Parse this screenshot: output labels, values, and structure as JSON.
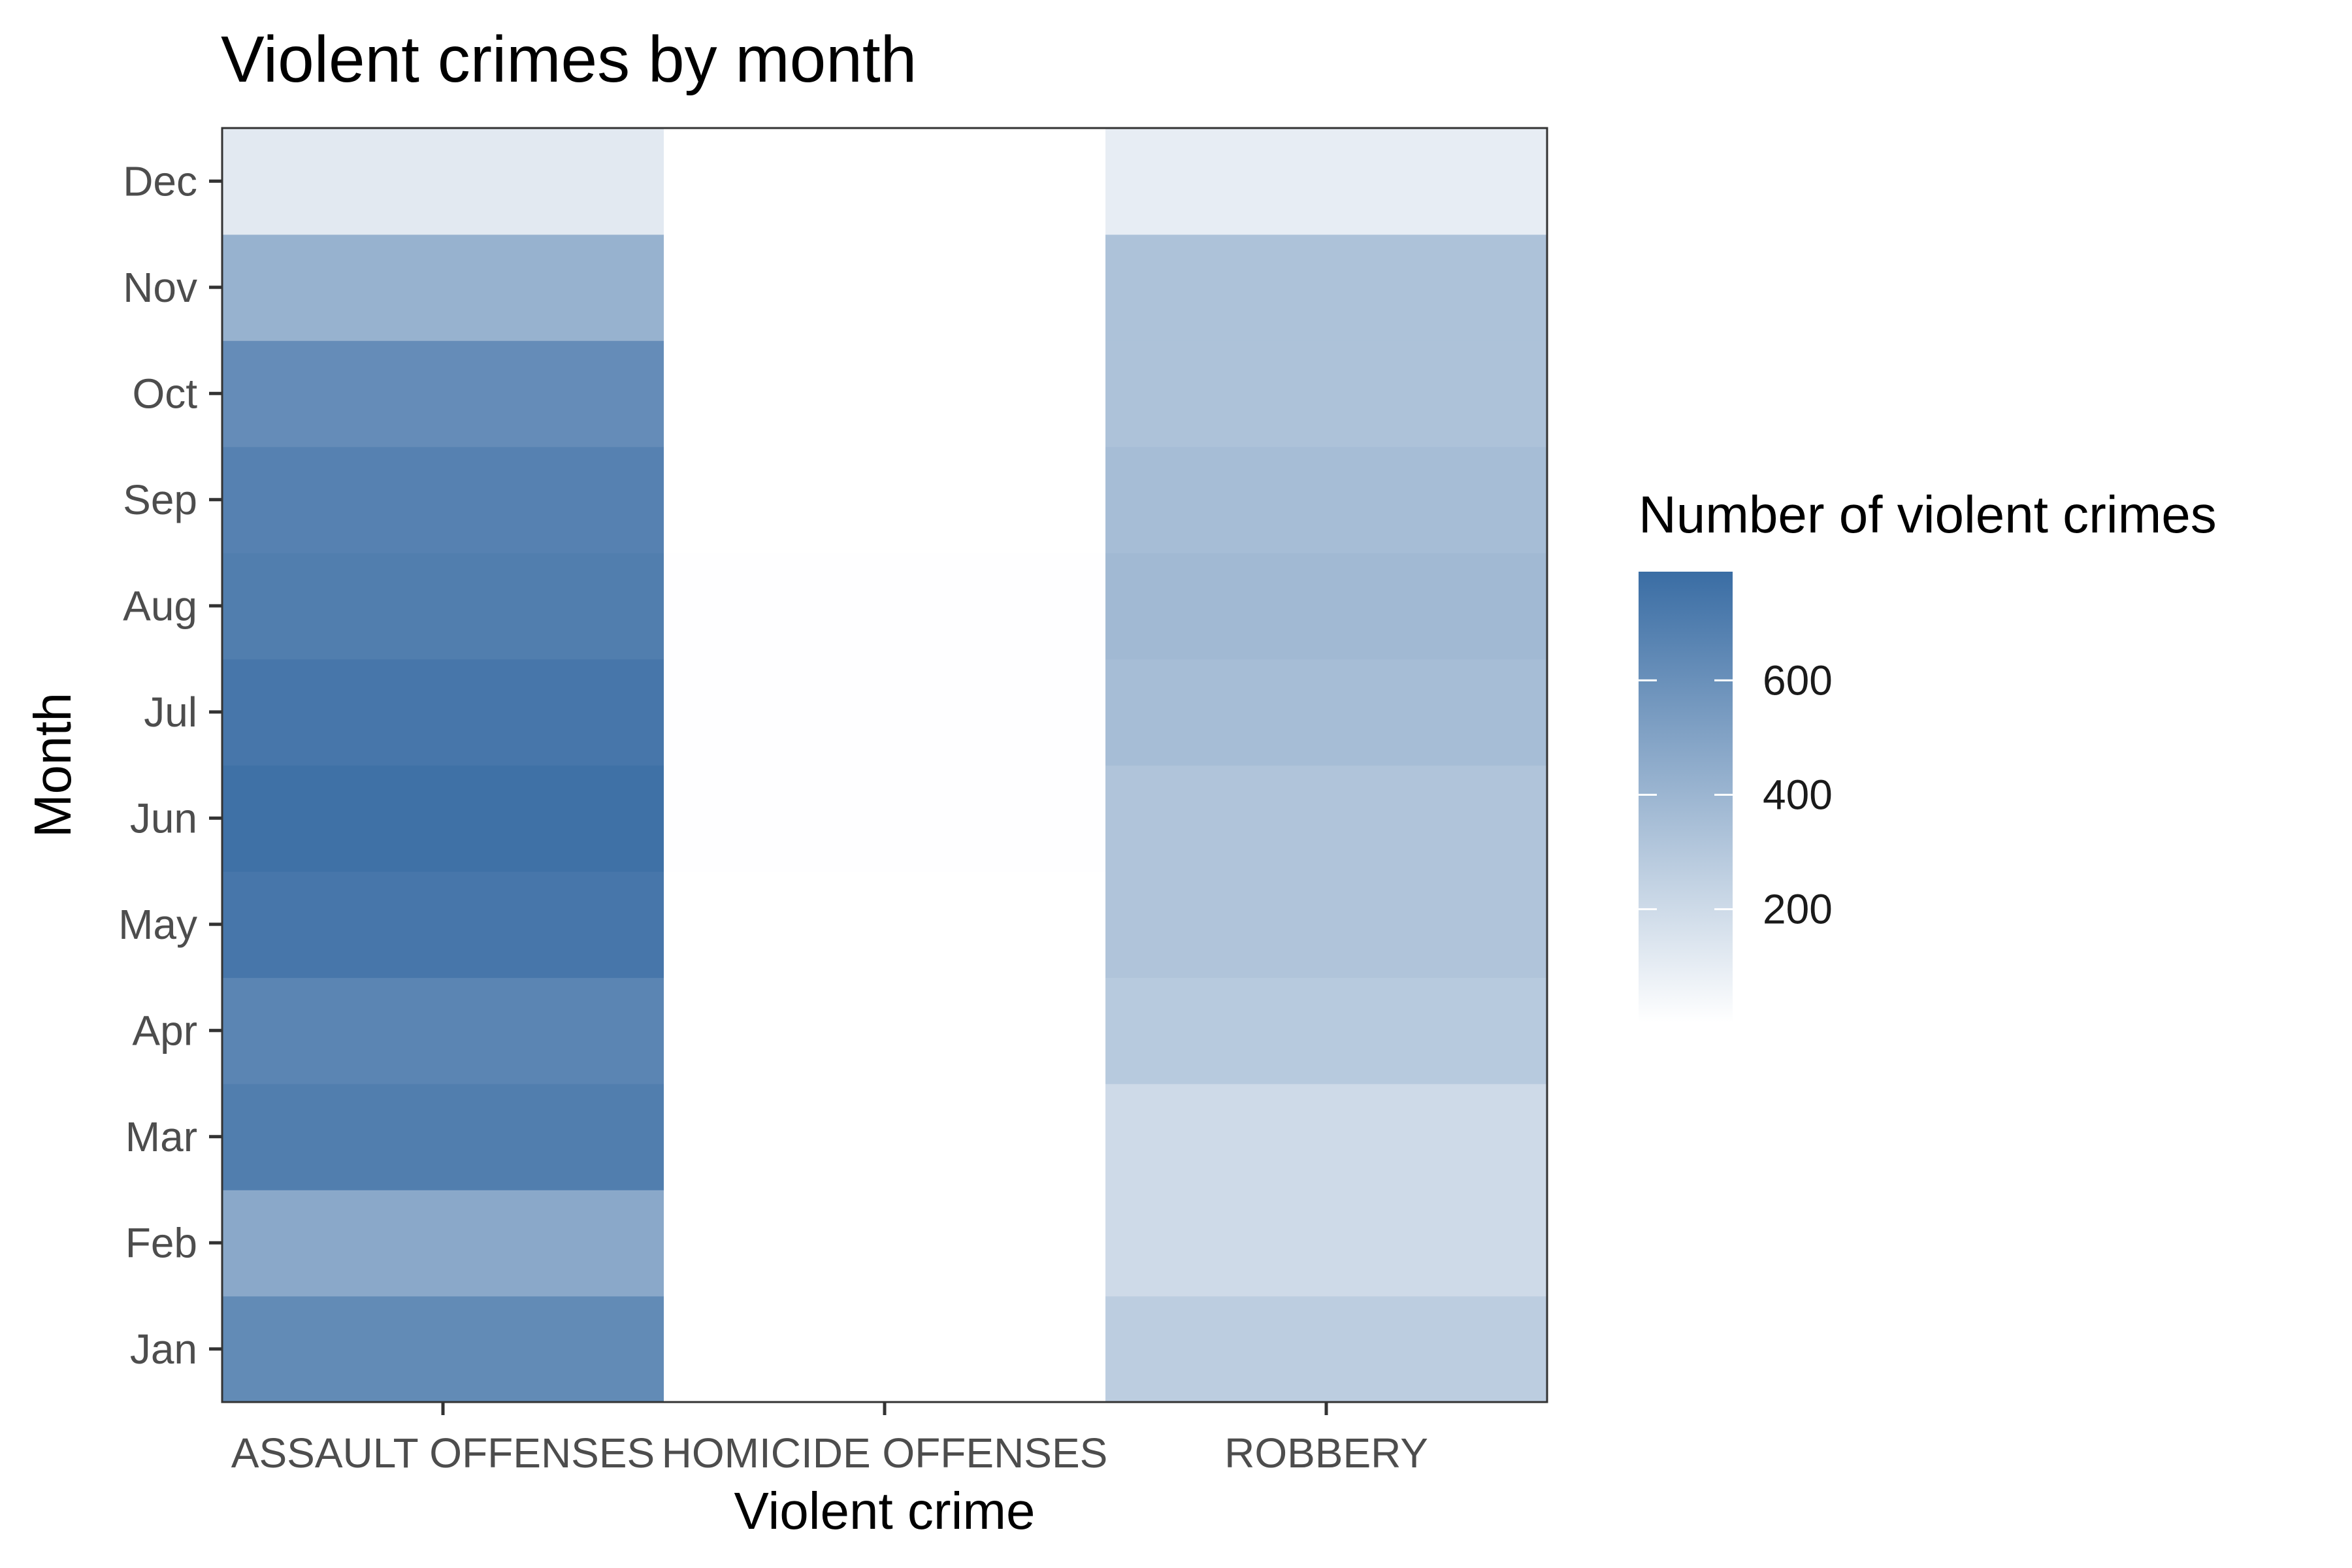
{
  "chart_data": {
    "type": "heatmap",
    "title": "Violent crimes by month",
    "xlabel": "Violent crime",
    "ylabel": "Month",
    "x_categories": [
      "ASSAULT OFFENSES",
      "HOMICIDE OFFENSES",
      "ROBBERY"
    ],
    "y_categories": [
      "Jan",
      "Feb",
      "Mar",
      "Apr",
      "May",
      "Jun",
      "Jul",
      "Aug",
      "Sep",
      "Oct",
      "Nov",
      "Dec"
    ],
    "series": [
      {
        "name": "ASSAULT OFFENSES",
        "values": [
          630,
          470,
          700,
          660,
          740,
          770,
          740,
          700,
          680,
          620,
          420,
          120
        ]
      },
      {
        "name": "HOMICIDE OFFENSES",
        "values": [
          3,
          2,
          4,
          4,
          4,
          5,
          5,
          5,
          4,
          4,
          3,
          2
        ]
      },
      {
        "name": "ROBBERY",
        "values": [
          270,
          200,
          200,
          290,
          320,
          320,
          360,
          380,
          360,
          330,
          330,
          100
        ]
      }
    ],
    "color_scale": {
      "title": "Number of violent crimes",
      "min": 2,
      "max": 790,
      "low_color": "#ffffff",
      "high_color": "#3a6da4",
      "breaks": [
        200,
        400,
        600
      ]
    },
    "legend_position": "right",
    "grid": false
  }
}
